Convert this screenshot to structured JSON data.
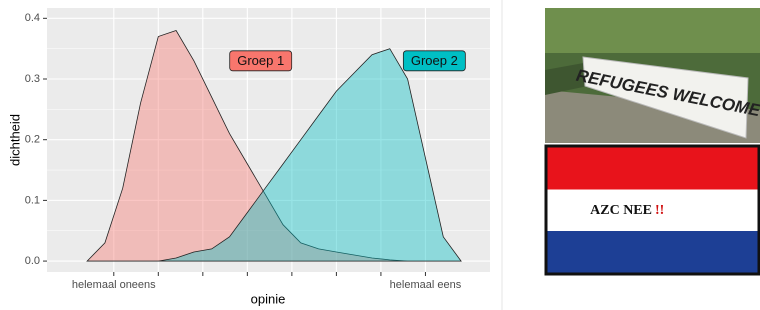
{
  "chart_data": {
    "type": "density",
    "x_label": "opinie",
    "y_label": "dichtheid",
    "x": [
      0.4,
      0.8,
      1.2,
      1.6,
      2.0,
      2.4,
      2.8,
      3.2,
      3.6,
      4.0,
      4.4,
      4.8,
      5.2,
      5.6,
      6.0,
      6.4,
      6.8,
      7.2,
      7.6,
      8.0,
      8.4,
      8.8
    ],
    "series": [
      {
        "name": "Groep 1",
        "color": "#f8766d",
        "values": [
          0,
          0.03,
          0.12,
          0.26,
          0.37,
          0.38,
          0.33,
          0.27,
          0.21,
          0.16,
          0.11,
          0.06,
          0.03,
          0.02,
          0.015,
          0.01,
          0.005,
          0.002,
          0,
          0,
          0,
          0
        ]
      },
      {
        "name": "Groep 2",
        "color": "#00bfc4",
        "values": [
          0,
          0,
          0,
          0,
          0,
          0.005,
          0.015,
          0.02,
          0.04,
          0.08,
          0.12,
          0.16,
          0.2,
          0.24,
          0.28,
          0.31,
          0.34,
          0.35,
          0.3,
          0.17,
          0.04,
          0
        ]
      }
    ],
    "xlim": [
      -0.5,
      9.45
    ],
    "ylim": [
      -0.018,
      0.417
    ],
    "xticks": [
      {
        "value": 1,
        "label": "helemaal oneens"
      },
      {
        "value": 8,
        "label": "helemaal eens"
      }
    ],
    "xminor_ticks": [
      2,
      3,
      4,
      5,
      6,
      7
    ],
    "yticks": [
      {
        "value": 0,
        "label": "0.0"
      },
      0.1,
      0.2,
      0.3,
      0.4
    ],
    "grid": true
  },
  "image": {
    "banner_text": "REFUGEES WELCOME",
    "sign_text": "AZC NEE",
    "sign_exclamation": "!!"
  }
}
